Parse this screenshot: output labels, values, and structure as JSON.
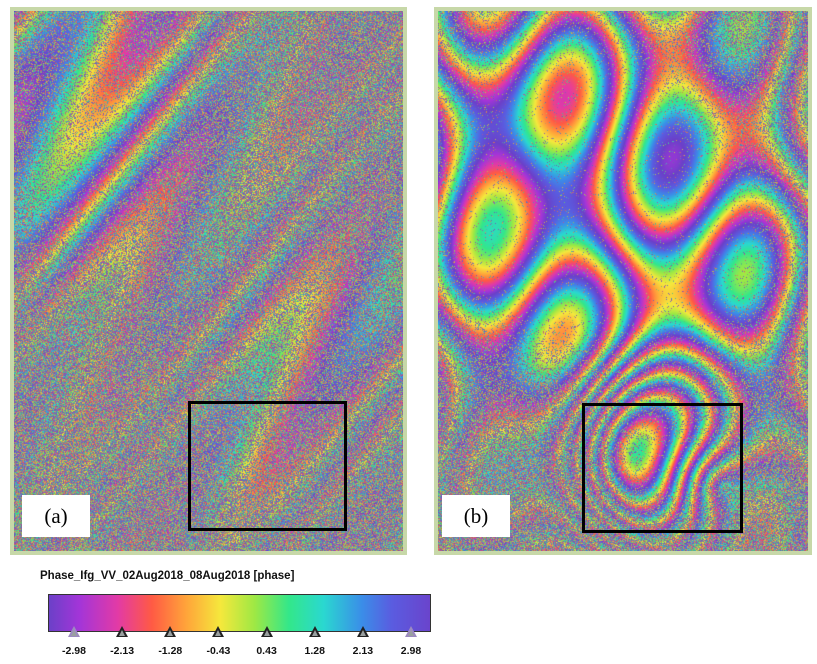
{
  "panels": [
    {
      "label": "(a)"
    },
    {
      "label": "(b)"
    }
  ],
  "colorbar": {
    "title": "Phase_Ifg_VV_02Aug2018_08Aug2018 [phase]",
    "ticks": [
      "-2.98",
      "-2.13",
      "-1.28",
      "-0.43",
      "0.43",
      "1.28",
      "2.13",
      "2.98"
    ]
  }
}
